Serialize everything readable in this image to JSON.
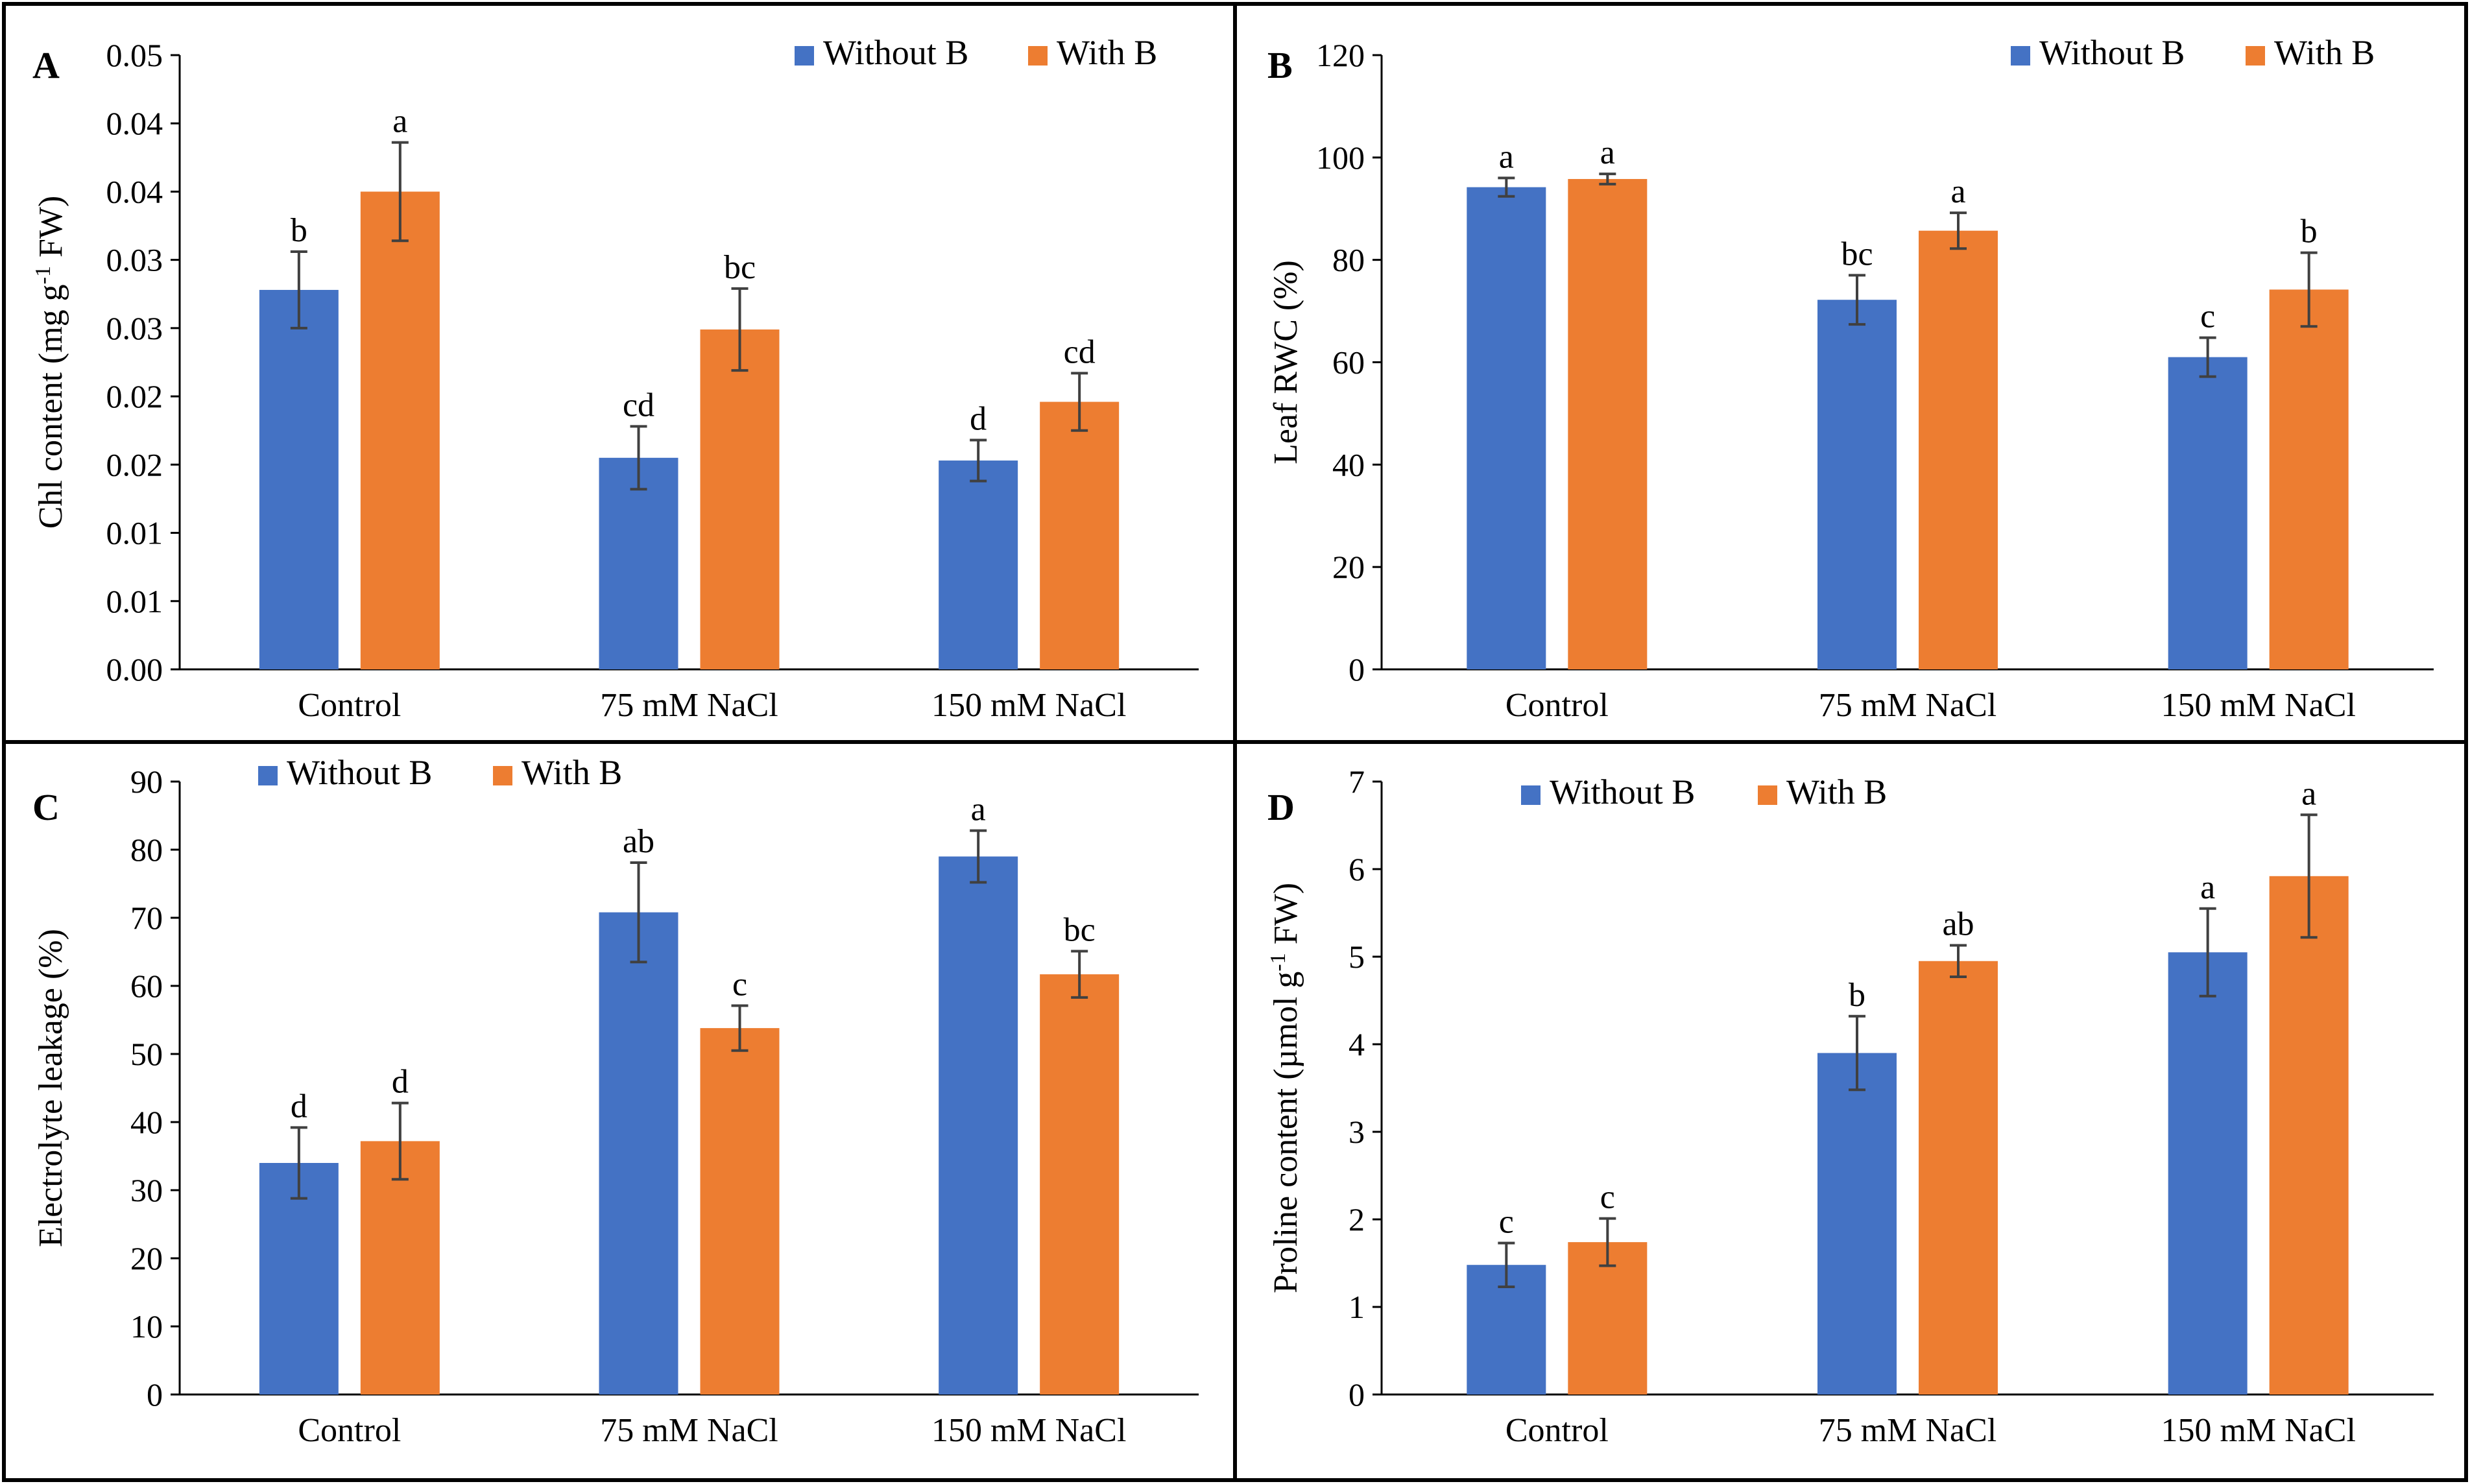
{
  "colors": {
    "without_b": "#4472C4",
    "with_b": "#ED7D31",
    "axis": "#000000",
    "error_bar": "#404040",
    "frame": "#000000"
  },
  "chart_data": [
    {
      "type": "bar",
      "panel": "A",
      "ylabel_main": "Chl content (mg g",
      "ylabel_sup": "-1",
      "ylabel_tail": " FW)",
      "xlabel": "",
      "ylim": [
        0,
        0.045
      ],
      "ytick_values": [
        0,
        0.005,
        0.01,
        0.015,
        0.02,
        0.025,
        0.03,
        0.035,
        0.04,
        0.045
      ],
      "ytick_labels": [
        "0.00",
        "0.01",
        "0.01",
        "0.02",
        "0.02",
        "0.03",
        "0.03",
        "0.04",
        "0.04",
        "0.05"
      ],
      "categories": [
        "Control",
        "75 mM NaCl",
        "150 mM NaCl"
      ],
      "legend": "top-right",
      "series": [
        {
          "name": "Without B",
          "values": [
            0.0278,
            0.0155,
            0.0153
          ],
          "errors": [
            0.0028,
            0.0023,
            0.0015
          ],
          "letters": [
            "b",
            "cd",
            "d"
          ]
        },
        {
          "name": "With B",
          "values": [
            0.035,
            0.0249,
            0.0196
          ],
          "errors": [
            0.0036,
            0.003,
            0.0021
          ],
          "letters": [
            "a",
            "bc",
            "cd"
          ]
        }
      ]
    },
    {
      "type": "bar",
      "panel": "B",
      "ylabel_main": "Leaf RWC (%)",
      "ylabel_sup": "",
      "ylabel_tail": "",
      "xlabel": "",
      "ylim": [
        0,
        120
      ],
      "ytick_values": [
        0,
        20,
        40,
        60,
        80,
        100,
        120
      ],
      "ytick_labels": [
        "0",
        "20",
        "40",
        "60",
        "80",
        "100",
        "120"
      ],
      "categories": [
        "Control",
        "75 mM NaCl",
        "150 mM NaCl"
      ],
      "legend": "top-right",
      "series": [
        {
          "name": "Without B",
          "values": [
            94.2,
            72.2,
            61.0
          ],
          "errors": [
            1.8,
            4.8,
            3.8
          ],
          "letters": [
            "a",
            "bc",
            "c"
          ]
        },
        {
          "name": "With B",
          "values": [
            95.8,
            85.7,
            74.2
          ],
          "errors": [
            1.0,
            3.5,
            7.2
          ],
          "letters": [
            "a",
            "a",
            "b"
          ]
        }
      ]
    },
    {
      "type": "bar",
      "panel": "C",
      "ylabel_main": "Electrolyte leakage  (%)",
      "ylabel_sup": "",
      "ylabel_tail": "",
      "xlabel": "",
      "ylim": [
        0,
        90
      ],
      "ytick_values": [
        0,
        10,
        20,
        30,
        40,
        50,
        60,
        70,
        80,
        90
      ],
      "ytick_labels": [
        "0",
        "10",
        "20",
        "30",
        "40",
        "50",
        "60",
        "70",
        "80",
        "90"
      ],
      "categories": [
        "Control",
        "75 mM NaCl",
        "150 mM NaCl"
      ],
      "legend": "top-left",
      "series": [
        {
          "name": "Without B",
          "values": [
            34.0,
            70.8,
            79.0
          ],
          "errors": [
            5.2,
            7.3,
            3.8
          ],
          "letters": [
            "d",
            "ab",
            "a"
          ]
        },
        {
          "name": "With B",
          "values": [
            37.2,
            53.8,
            61.7
          ],
          "errors": [
            5.6,
            3.3,
            3.4
          ],
          "letters": [
            "d",
            "c",
            "bc"
          ]
        }
      ]
    },
    {
      "type": "bar",
      "panel": "D",
      "ylabel_main": "Proline content (µmol g",
      "ylabel_sup": "-1",
      "ylabel_tail": " FW)",
      "xlabel": "",
      "ylim": [
        0,
        7
      ],
      "ytick_values": [
        0,
        1,
        2,
        3,
        4,
        5,
        6,
        7
      ],
      "ytick_labels": [
        "0",
        "1",
        "2",
        "3",
        "4",
        "5",
        "6",
        "7"
      ],
      "categories": [
        "Control",
        "75 mM NaCl",
        "150 mM NaCl"
      ],
      "legend": "top-center",
      "series": [
        {
          "name": "Without B",
          "values": [
            1.48,
            3.9,
            5.05
          ],
          "errors": [
            0.25,
            0.42,
            0.5
          ],
          "letters": [
            "c",
            "b",
            "a"
          ]
        },
        {
          "name": "With B",
          "values": [
            1.74,
            4.95,
            5.92
          ],
          "errors": [
            0.27,
            0.18,
            0.7
          ],
          "letters": [
            "c",
            "ab",
            "a"
          ]
        }
      ]
    }
  ]
}
